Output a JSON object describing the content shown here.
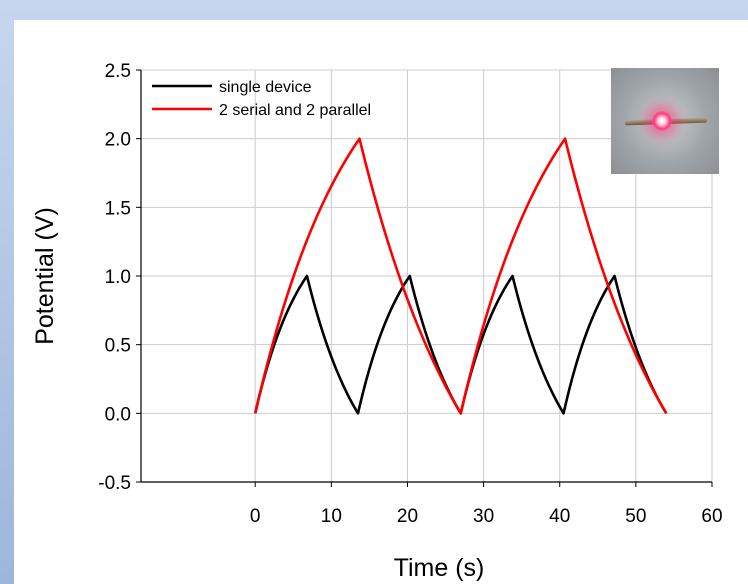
{
  "chart_data": {
    "type": "line",
    "xlabel": "Time (s)",
    "ylabel": "Potential (V)",
    "xlim": [
      -15,
      60
    ],
    "ylim": [
      -0.5,
      2.5
    ],
    "xticks": [
      "0",
      "10",
      "20",
      "30",
      "40",
      "50",
      "60"
    ],
    "yticks": [
      "-0.5",
      "0.0",
      "0.5",
      "1.0",
      "1.5",
      "2.0",
      "2.5"
    ],
    "grid": true,
    "legend_position": "top-left",
    "inset_image": "red-led-lit-photo",
    "series": [
      {
        "name": "single device",
        "color": "#000000",
        "points": [
          [
            0,
            0.0
          ],
          [
            6.8,
            1.0
          ],
          [
            13.5,
            0.0
          ],
          [
            20.3,
            1.0
          ],
          [
            27.0,
            0.0
          ],
          [
            33.8,
            1.0
          ],
          [
            40.5,
            0.0
          ],
          [
            47.2,
            1.0
          ],
          [
            54.0,
            0.0
          ]
        ]
      },
      {
        "name": "2 serial and 2 parallel",
        "color": "#ff0000",
        "points": [
          [
            0,
            0.0
          ],
          [
            13.7,
            2.0
          ],
          [
            27.0,
            0.0
          ],
          [
            40.7,
            2.0
          ],
          [
            54.0,
            0.0
          ]
        ]
      }
    ]
  }
}
